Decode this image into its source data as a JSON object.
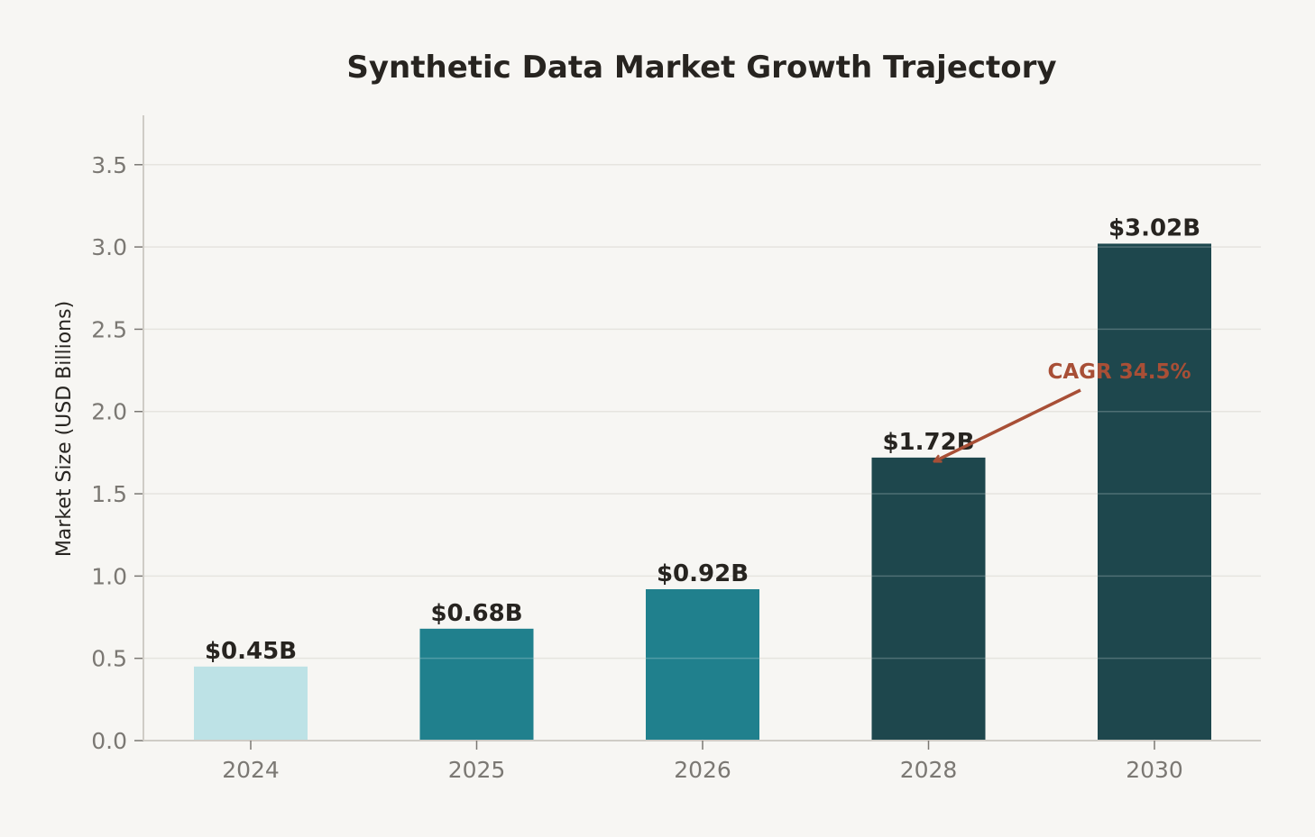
{
  "chart_data": {
    "type": "bar",
    "title": "Synthetic Data Market Growth Trajectory",
    "xlabel": "",
    "ylabel": "Market Size (USD Billions)",
    "categories": [
      "2024",
      "2025",
      "2026",
      "2028",
      "2030"
    ],
    "values": [
      0.45,
      0.68,
      0.92,
      1.72,
      3.02
    ],
    "data_labels": [
      "$0.45B",
      "$0.68B",
      "$0.92B",
      "$1.72B",
      "$3.02B"
    ],
    "bar_colors": [
      "#bde2e6",
      "#20808d",
      "#20808d",
      "#1e474d",
      "#1e474d"
    ],
    "ylim": [
      0,
      3.8
    ],
    "yticks": [
      0.0,
      0.5,
      1.0,
      1.5,
      2.0,
      2.5,
      3.0,
      3.5
    ],
    "ytick_labels": [
      "0.0",
      "0.5",
      "1.0",
      "1.5",
      "2.0",
      "2.5",
      "3.0",
      "3.5"
    ],
    "grid": true,
    "annotation": {
      "text": "CAGR 34.5%",
      "target_category": "2028",
      "target_value": 1.72,
      "color": "#a84f36"
    }
  }
}
